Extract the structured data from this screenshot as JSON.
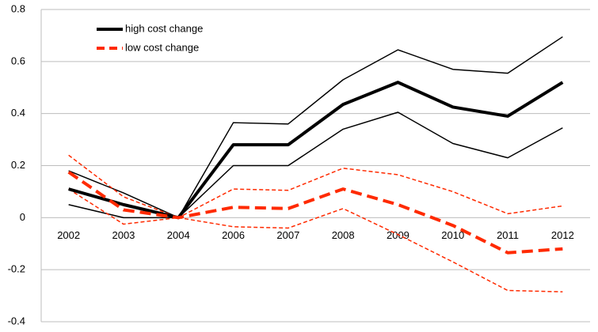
{
  "chart_data": {
    "type": "line",
    "categories": [
      "2002",
      "2003",
      "2004",
      "2006",
      "2007",
      "2008",
      "2009",
      "2010",
      "2011",
      "2012"
    ],
    "series": [
      {
        "color": "#000000",
        "width": 1.5,
        "dashed": false,
        "values": [
          0.18,
          0.095,
          0,
          0.365,
          0.36,
          0.53,
          0.645,
          0.57,
          0.555,
          0.695
        ]
      },
      {
        "color": "#000000",
        "width": 1.5,
        "dashed": false,
        "values": [
          0.05,
          0,
          0,
          0.2,
          0.2,
          0.34,
          0.405,
          0.285,
          0.23,
          0.345
        ]
      },
      {
        "color": "#ff2a00",
        "width": 1.5,
        "dashed": true,
        "values": [
          0.24,
          0.08,
          0,
          0.11,
          0.105,
          0.19,
          0.165,
          0.1,
          0.015,
          0.045
        ]
      },
      {
        "color": "#ff2a00",
        "width": 1.5,
        "dashed": true,
        "values": [
          0.11,
          -0.025,
          0,
          -0.035,
          -0.04,
          0.035,
          -0.065,
          -0.17,
          -0.28,
          -0.285
        ]
      },
      {
        "name": "high cost change",
        "color": "#000000",
        "width": 4,
        "dashed": false,
        "values": [
          0.11,
          0.05,
          0,
          0.28,
          0.28,
          0.435,
          0.52,
          0.425,
          0.39,
          0.52
        ]
      },
      {
        "name": "low cost change",
        "color": "#ff2a00",
        "width": 4,
        "dashed": true,
        "values": [
          0.175,
          0.03,
          0,
          0.04,
          0.035,
          0.11,
          0.05,
          -0.03,
          -0.135,
          -0.12
        ]
      }
    ],
    "ylim": [
      -0.4,
      0.8
    ],
    "yticks": [
      -0.4,
      -0.2,
      0,
      0.2,
      0.4,
      0.6,
      0.8
    ],
    "grid": true,
    "legend": "top-left"
  }
}
